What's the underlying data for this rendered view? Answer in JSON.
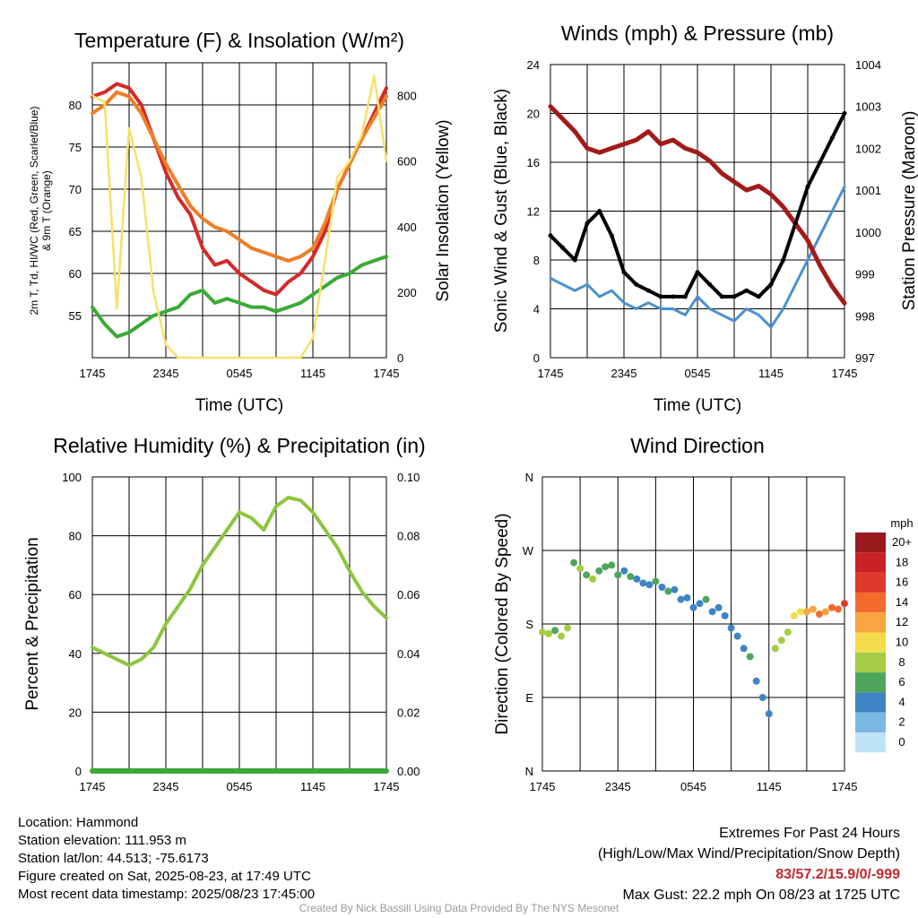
{
  "chart_data": [
    {
      "type": "line",
      "title": "Temperature (F) & Insolation (W/m²)",
      "xlabel": "Time (UTC)",
      "ylabel_line1": "2m T, Td, HI/WC (Red, Green, Scarlet/Blue)",
      "ylabel_line2": "& 9m T (Orange)",
      "ylabel_right": "Solar Insolation (Yellow)",
      "x_ticks": [
        "1745",
        "2345",
        "0545",
        "1145",
        "1745"
      ],
      "ylim": [
        50,
        85
      ],
      "y_ticks": [
        55,
        60,
        65,
        70,
        75,
        80
      ],
      "y2lim": [
        0,
        900
      ],
      "y2_ticks": [
        0,
        200,
        400,
        600,
        800
      ],
      "grid": true,
      "x": [
        0,
        1,
        2,
        3,
        4,
        5,
        6,
        7,
        8,
        9,
        10,
        11,
        12,
        13,
        14,
        15,
        16,
        17,
        18,
        19,
        20,
        21,
        22,
        23,
        24
      ],
      "series": [
        {
          "color": "#d62828",
          "axis": "left",
          "values": [
            81,
            81.5,
            82.5,
            82,
            80,
            76,
            72,
            69,
            67,
            63,
            61,
            61.5,
            60,
            59,
            58,
            57.5,
            59,
            60,
            62,
            65,
            70,
            73,
            76,
            79,
            82
          ]
        },
        {
          "color": "#f07e26",
          "axis": "left",
          "values": [
            79,
            80,
            81.5,
            81,
            79,
            76,
            73,
            70.5,
            68,
            66.5,
            65.5,
            65,
            64,
            63,
            62.5,
            62,
            61.5,
            62,
            63,
            66,
            70,
            73,
            76,
            78.5,
            81
          ]
        },
        {
          "color": "#3aaa35",
          "axis": "left",
          "values": [
            56,
            54,
            52.5,
            53,
            54,
            55,
            55.5,
            56,
            57.5,
            58,
            56.5,
            57,
            56.5,
            56,
            56,
            55.5,
            56,
            56.5,
            57.5,
            58.5,
            59.5,
            60,
            61,
            61.5,
            62
          ]
        },
        {
          "color": "#f7e06b",
          "axis": "right",
          "values": [
            800,
            780,
            150,
            700,
            550,
            200,
            40,
            0,
            0,
            0,
            0,
            0,
            0,
            0,
            0,
            0,
            0,
            0,
            60,
            300,
            550,
            600,
            680,
            860,
            600
          ]
        }
      ]
    },
    {
      "type": "line",
      "title": "Winds (mph) & Pressure (mb)",
      "xlabel": "Time (UTC)",
      "ylabel": "Sonic Wind & Gust (Blue, Black)",
      "ylabel_right": "Station Pressure (Maroon)",
      "x_ticks": [
        "1745",
        "2345",
        "0545",
        "1145",
        "1745"
      ],
      "ylim": [
        0,
        24
      ],
      "y_ticks": [
        0,
        4,
        8,
        12,
        16,
        20,
        24
      ],
      "y2lim": [
        997,
        1004
      ],
      "y2_ticks": [
        997,
        998,
        999,
        1000,
        1001,
        1002,
        1003,
        1004
      ],
      "grid": true,
      "x": [
        0,
        1,
        2,
        3,
        4,
        5,
        6,
        7,
        8,
        9,
        10,
        11,
        12,
        13,
        14,
        15,
        16,
        17,
        18,
        19,
        20,
        21,
        22,
        23,
        24
      ],
      "series": [
        {
          "color": "#4a90d0",
          "axis": "left",
          "values": [
            6.5,
            6,
            5.5,
            6,
            5,
            5.5,
            4.5,
            4,
            4.5,
            4,
            4,
            3.5,
            5,
            4,
            3.5,
            3,
            4,
            3.5,
            2.5,
            4,
            6,
            8,
            10,
            12,
            14
          ]
        },
        {
          "color": "#000000",
          "axis": "left",
          "values": [
            10,
            9,
            8,
            11,
            12,
            10,
            7,
            6,
            5.5,
            5,
            5,
            5,
            7,
            6,
            5,
            5,
            5.5,
            5,
            6,
            8,
            11,
            14,
            16,
            18,
            20
          ]
        },
        {
          "color": "#a31a1a",
          "axis": "right",
          "values": [
            1003,
            1002.7,
            1002.4,
            1002,
            1001.9,
            1002,
            1002.1,
            1002.2,
            1002.4,
            1002.1,
            1002.2,
            1002,
            1001.9,
            1001.7,
            1001.4,
            1001.2,
            1001,
            1001.1,
            1000.9,
            1000.6,
            1000.2,
            999.8,
            999.2,
            998.7,
            998.3
          ]
        }
      ]
    },
    {
      "type": "line",
      "title": "Relative Humidity (%) & Precipitation (in)",
      "ylabel": "Percent & Precipitation",
      "x_ticks": [
        "1745",
        "2345",
        "0545",
        "1145",
        "1745"
      ],
      "ylim": [
        0,
        100
      ],
      "y_ticks": [
        0,
        20,
        40,
        60,
        80,
        100
      ],
      "y2lim": [
        0,
        0.1
      ],
      "y2_ticks": [
        "0.00",
        "0.02",
        "0.04",
        "0.06",
        "0.08",
        "0.10"
      ],
      "grid": true,
      "x": [
        0,
        1,
        2,
        3,
        4,
        5,
        6,
        7,
        8,
        9,
        10,
        11,
        12,
        13,
        14,
        15,
        16,
        17,
        18,
        19,
        20,
        21,
        22,
        23,
        24
      ],
      "series": [
        {
          "color": "#8dc63f",
          "axis": "left",
          "values": [
            42,
            40,
            38,
            36,
            38,
            42,
            50,
            56,
            62,
            70,
            76,
            82,
            88,
            86,
            82,
            90,
            93,
            92,
            88,
            82,
            76,
            68,
            61,
            56,
            52
          ]
        },
        {
          "color": "#3aaa35",
          "axis": "right",
          "values": [
            0,
            0,
            0,
            0,
            0,
            0,
            0,
            0,
            0,
            0,
            0,
            0,
            0,
            0,
            0,
            0,
            0,
            0,
            0,
            0,
            0,
            0,
            0,
            0,
            0
          ]
        }
      ]
    },
    {
      "type": "scatter",
      "title": "Wind Direction",
      "ylabel": "Direction (Colored By Speed)",
      "x_ticks": [
        "1745",
        "2345",
        "0545",
        "1145",
        "1745"
      ],
      "y_ticks": [
        "N",
        "E",
        "S",
        "W",
        "N"
      ],
      "ylim": [
        0,
        360
      ],
      "grid": true,
      "legend_title": "mph",
      "legend_labels": [
        "20+",
        "18",
        "16",
        "14",
        "12",
        "10",
        "8",
        "6",
        "4",
        "2",
        "0"
      ],
      "legend_colors": [
        "#99191c",
        "#c92126",
        "#e0382a",
        "#f26b2d",
        "#f9a541",
        "#f4dc4c",
        "#a4cc46",
        "#4fa55c",
        "#3f84c4",
        "#7bb7e3",
        "#bfe3f7"
      ],
      "x": [
        0,
        0.5,
        1,
        1.5,
        2,
        2.5,
        3,
        3.5,
        4,
        4.5,
        5,
        5.5,
        6,
        6.5,
        7,
        7.5,
        8,
        8.5,
        9,
        9.5,
        10,
        10.5,
        11,
        11.5,
        12,
        12.5,
        13,
        13.5,
        14,
        14.5,
        15,
        15.5,
        16,
        16.5,
        17,
        17.5,
        18,
        18.5,
        19,
        19.5,
        20,
        20.5,
        21,
        21.5,
        22,
        22.5,
        23,
        23.5,
        24
      ],
      "values": [
        170,
        168,
        172,
        165,
        175,
        255,
        248,
        240,
        235,
        245,
        250,
        252,
        240,
        245,
        238,
        235,
        230,
        228,
        232,
        225,
        220,
        222,
        210,
        212,
        200,
        205,
        210,
        195,
        200,
        190,
        175,
        165,
        150,
        140,
        110,
        90,
        70,
        150,
        160,
        170,
        190,
        195,
        195,
        198,
        192,
        195,
        200,
        198,
        205
      ],
      "speeds": [
        6,
        6,
        5,
        7,
        6,
        4,
        6,
        5,
        6,
        5,
        4,
        4,
        4,
        3,
        4,
        3,
        2,
        3,
        4,
        3,
        4,
        2,
        2,
        3,
        3,
        2,
        4,
        3,
        2,
        2,
        3,
        2,
        2,
        4,
        3,
        2,
        2,
        6,
        7,
        6,
        8,
        9,
        10,
        11,
        12,
        10,
        12,
        13,
        15
      ]
    }
  ],
  "footer": {
    "location": "Location: Hammond",
    "elevation": "Station elevation: 111.953 m",
    "latlon": "Station lat/lon: 44.513; -75.6173",
    "created": "Figure created on Sat, 2025-08-23, at 17:49 UTC",
    "recent": "Most recent data timestamp: 2025/08/23 17:45:00",
    "extremes_title": "Extremes For Past 24 Hours",
    "extremes_fields": "(High/Low/Max Wind/Precipitation/Snow Depth)",
    "extremes_values": "83/57.2/15.9/0/-999",
    "max_gust": "Max Gust: 22.2 mph On 08/23 at 1725 UTC",
    "credit": "Created By Nick Bassill Using Data Provided By The NYS Mesonet"
  }
}
